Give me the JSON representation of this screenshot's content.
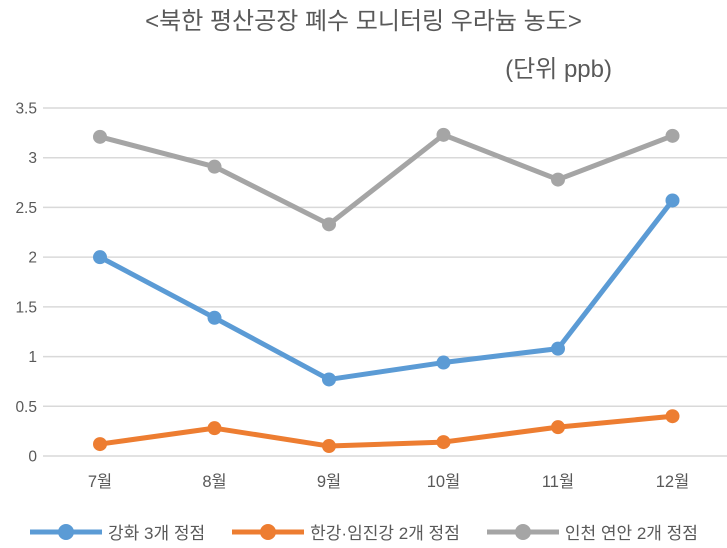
{
  "chart": {
    "title": "<북한 평산공장 폐수 모니터링 우라늄 농도>",
    "unit_label": "(단위 ppb)"
  },
  "chart_data": {
    "type": "line",
    "title": "<북한 평산공장 폐수 모니터링 우라늄 농도>",
    "subtitle": "(단위 ppb)",
    "xlabel": "",
    "ylabel": "",
    "categories": [
      "7월",
      "8월",
      "9월",
      "10월",
      "11월",
      "12월"
    ],
    "series": [
      {
        "name": "강화 3개 정점",
        "color": "#5B9BD5",
        "values": [
          2.0,
          1.39,
          0.77,
          0.94,
          1.08,
          2.57
        ]
      },
      {
        "name": "한강·임진강 2개 정점",
        "color": "#ED7D31",
        "values": [
          0.12,
          0.28,
          0.1,
          0.14,
          0.29,
          0.4
        ]
      },
      {
        "name": "인천 연안 2개 정점",
        "color": "#A5A5A5",
        "values": [
          3.21,
          2.91,
          2.33,
          3.23,
          2.78,
          3.22
        ]
      }
    ],
    "ylim": [
      0,
      3.5
    ],
    "ytick_step": 0.5,
    "yticks": [
      "0",
      "0.5",
      "1",
      "1.5",
      "2",
      "2.5",
      "3",
      "3.5"
    ],
    "grid": true,
    "gridline_color": "#D9D9D9",
    "axis_text_color": "#595959",
    "title_color": "#595959",
    "marker_shape": "circle",
    "legend_position": "bottom"
  }
}
